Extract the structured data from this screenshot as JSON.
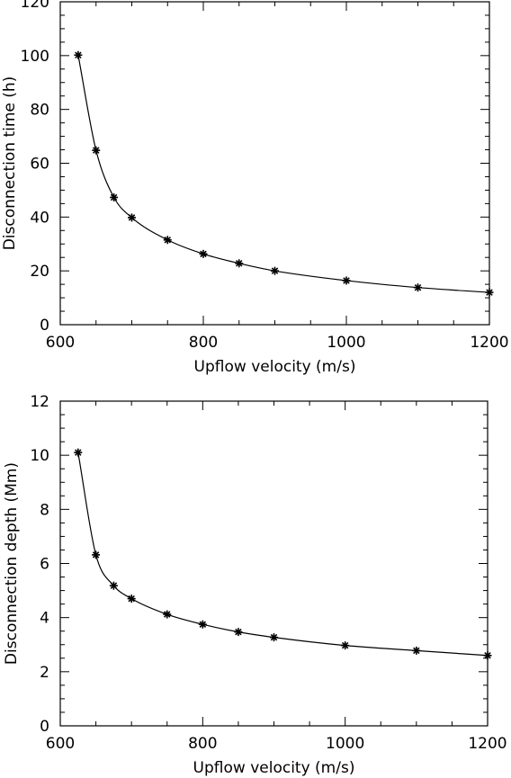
{
  "chart_data": [
    {
      "type": "line",
      "xlabel": "Upflow velocity (m/s)",
      "ylabel": "Disconnection time (h)",
      "xlim": [
        600,
        1200
      ],
      "ylim": [
        0,
        120
      ],
      "xticks": [
        600,
        800,
        1000,
        1200
      ],
      "yticks": [
        0,
        20,
        40,
        60,
        80,
        100,
        120
      ],
      "grid": false,
      "marker": "asterisk",
      "series": [
        {
          "x": [
            625,
            650,
            675,
            700,
            750,
            800,
            850,
            900,
            1000,
            1100,
            1200
          ],
          "y": [
            100.2,
            64.8,
            47.3,
            39.8,
            31.5,
            26.3,
            22.8,
            20.0,
            16.4,
            13.8,
            12.0
          ]
        }
      ]
    },
    {
      "type": "line",
      "xlabel": "Upflow velocity (m/s)",
      "ylabel": "Disconnection depth (Mm)",
      "xlim": [
        600,
        1200
      ],
      "ylim": [
        0,
        12
      ],
      "xticks": [
        600,
        800,
        1000,
        1200
      ],
      "yticks": [
        0,
        2,
        4,
        6,
        8,
        10,
        12
      ],
      "grid": false,
      "marker": "asterisk",
      "series": [
        {
          "x": [
            625,
            650,
            675,
            700,
            750,
            800,
            850,
            900,
            1000,
            1100,
            1200
          ],
          "y": [
            10.1,
            6.32,
            5.18,
            4.7,
            4.12,
            3.75,
            3.47,
            3.27,
            2.97,
            2.78,
            2.6
          ]
        }
      ]
    }
  ]
}
